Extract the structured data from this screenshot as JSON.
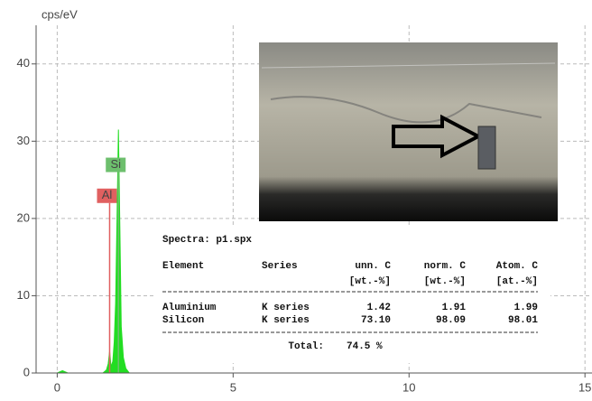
{
  "chart_data": {
    "type": "area",
    "y_label": "cps/eV",
    "color": "#22dd22",
    "x": [
      0,
      0.15,
      0.3,
      1.3,
      1.4,
      1.45,
      1.49,
      1.53,
      1.58,
      1.62,
      1.66,
      1.7,
      1.74,
      1.78,
      1.82,
      1.88,
      1.95,
      2.05,
      15
    ],
    "values": [
      0,
      0.3,
      0,
      0,
      0.4,
      1.2,
      2.8,
      0.8,
      1.5,
      4,
      9,
      20,
      31.5,
      19,
      6,
      2,
      0.6,
      0,
      0
    ],
    "xlim": [
      -0.6,
      15.2
    ],
    "ylim": [
      0,
      45
    ],
    "xticks": [
      0,
      5,
      10,
      15
    ],
    "yticks": [
      0,
      10,
      20,
      30,
      40
    ],
    "grid": true,
    "markers": [
      {
        "label": "Al",
        "x": 1.49,
        "y": 22,
        "color": "#e06060"
      },
      {
        "label": "Si",
        "x": 1.74,
        "y": 26,
        "color": "#6dbf6d"
      }
    ]
  },
  "table": {
    "title": "Spectra: p1.spx",
    "headers": [
      [
        "Element",
        ""
      ],
      [
        "Series",
        ""
      ],
      [
        "unn. C",
        "[wt.-%]"
      ],
      [
        "norm. C",
        "[wt.-%]"
      ],
      [
        "Atom. C",
        "[at.-%]"
      ]
    ],
    "rows": [
      [
        "Aluminium",
        "K series",
        "1.42",
        "1.91",
        "1.99"
      ],
      [
        "Silicon",
        "K series",
        "73.10",
        "98.09",
        "98.01"
      ]
    ],
    "total_label": "Total:",
    "total_value": "74.5 %"
  }
}
